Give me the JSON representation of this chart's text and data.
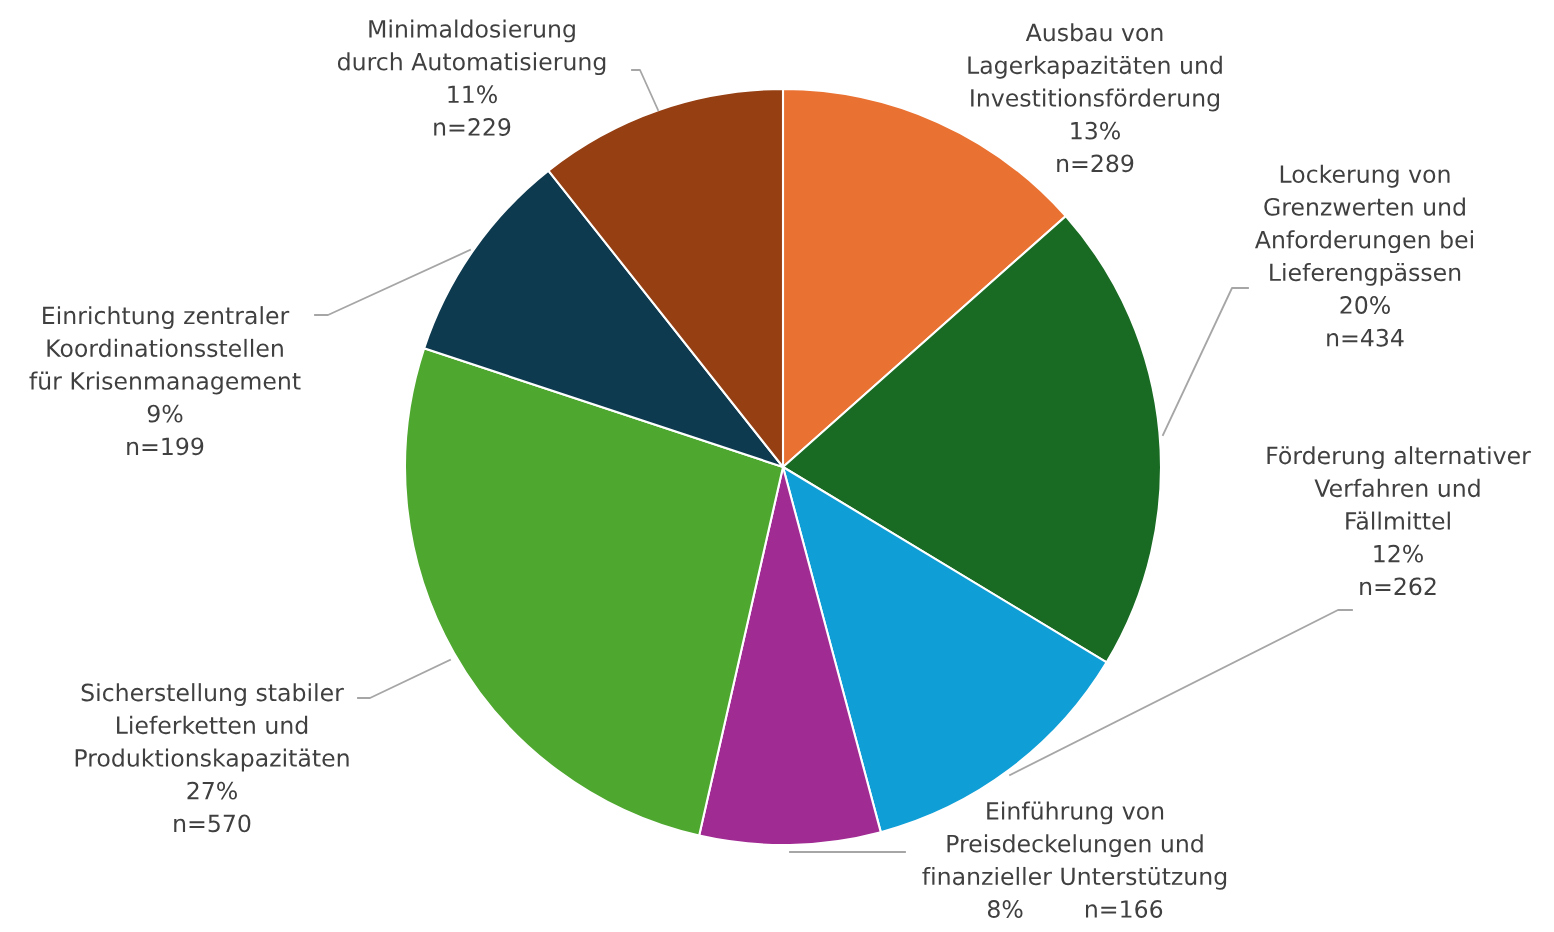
{
  "chart_data": {
    "type": "pie",
    "categories": [
      "Ausbau von\nLagerkapazitäten und\nInvestitionsförderung",
      "Lockerung von\nGrenzwerten und\nAnforderungen bei\nLieferengpässen",
      "Förderung alternativer\nVerfahren und\nFällmittel",
      "Einführung von\nPreisdeckelungen und\nfinanzieller Unterstützung",
      "Sicherstellung stabiler\nLieferketten und\nProduktionskapazitäten",
      "Einrichtung zentraler\nKoordinationsstellen\nfür Krisenmanagement",
      "Minimaldosierung\ndurch Automatisierung"
    ],
    "values": [
      289,
      434,
      262,
      166,
      570,
      199,
      229
    ],
    "value_labels": [
      "13%\nn=289",
      "20%\nn=434",
      "12%\nn=262",
      "8%        n=166",
      "27%\nn=570",
      "9%\nn=199",
      "11%\nn=229"
    ],
    "colors": [
      "#e97132",
      "#196b24",
      "#0f9ed5",
      "#a02b93",
      "#4ea72e",
      "#0e3a50",
      "#953f12"
    ]
  }
}
